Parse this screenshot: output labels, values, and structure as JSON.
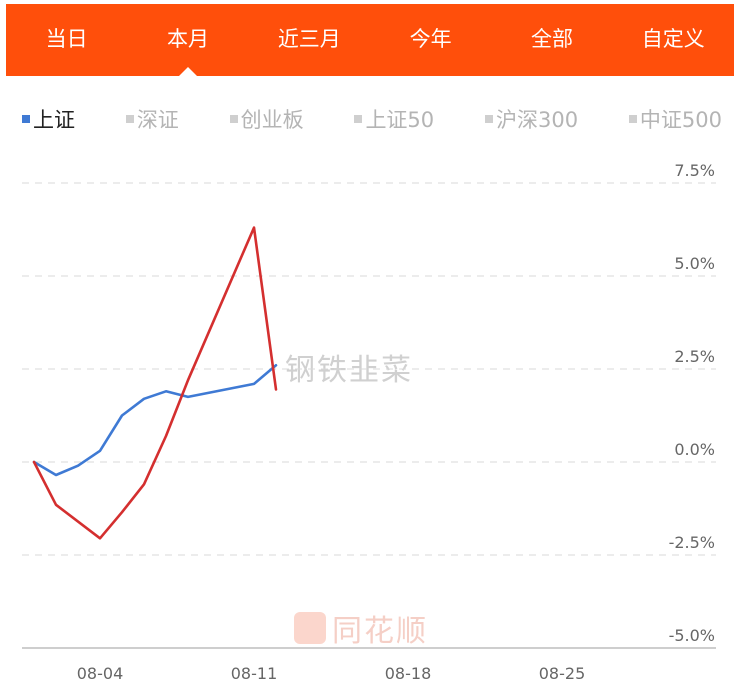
{
  "tabs": [
    {
      "label": "当日",
      "active": false
    },
    {
      "label": "本月",
      "active": true
    },
    {
      "label": "近三月",
      "active": false
    },
    {
      "label": "今年",
      "active": false
    },
    {
      "label": "全部",
      "active": false
    },
    {
      "label": "自定义",
      "active": false
    }
  ],
  "legend": [
    {
      "label": "上证",
      "active": true
    },
    {
      "label": "深证",
      "active": false
    },
    {
      "label": "创业板",
      "active": false
    },
    {
      "label": "上证50",
      "active": false
    },
    {
      "label": "沪深300",
      "active": false
    },
    {
      "label": "中证500",
      "active": false
    }
  ],
  "watermarks": {
    "main": "钢铁韭菜",
    "brand": "同花顺"
  },
  "colors": {
    "accent": "#ff4f0b",
    "series_blue": "#3f7ad4",
    "series_red": "#d42f2f"
  },
  "chart_data": {
    "type": "line",
    "x_ticks": [
      "08-04",
      "08-11",
      "08-18",
      "08-25"
    ],
    "y_ticks": [
      "7.5%",
      "5.0%",
      "2.5%",
      "0.0%",
      "-2.5%",
      "-5.0%"
    ],
    "ylim": [
      -5.0,
      7.5
    ],
    "grid": true,
    "series": [
      {
        "color": "#3f7ad4",
        "x": [
          "08-01",
          "08-02",
          "08-03",
          "08-04",
          "08-05",
          "08-06",
          "08-07",
          "08-08",
          "08-11",
          "08-12"
        ],
        "values": [
          0.0,
          -0.35,
          -0.1,
          0.3,
          1.25,
          1.7,
          1.9,
          1.75,
          2.1,
          2.6
        ]
      },
      {
        "color": "#d42f2f",
        "x": [
          "08-01",
          "08-02",
          "08-04",
          "08-05",
          "08-06",
          "08-07",
          "08-08",
          "08-11",
          "08-12"
        ],
        "values": [
          0.0,
          -1.15,
          -2.05,
          -1.35,
          -0.6,
          0.7,
          2.2,
          6.3,
          1.95
        ]
      }
    ]
  }
}
